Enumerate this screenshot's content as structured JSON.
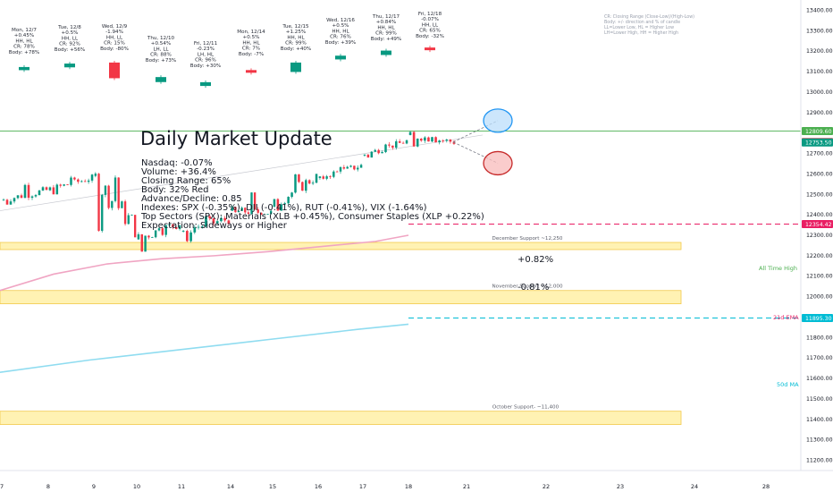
{
  "header": {
    "title": "Daily Market Update",
    "lines": [
      "Nasdaq: -0.07%",
      "Volume: +36.4%",
      "Closing Range: 65%",
      "Body: 32% Red",
      "Advance/Decline: 0.85",
      "Indexes: SPX (-0.35%), DJI (-0.41%), RUT (-0.41%), VIX (-1.64%)",
      "Top Sectors (SPX): Materials (XLB +0.45%), Consumer Staples (XLP +0.22%)",
      "Expectation: Sideways or Higher"
    ]
  },
  "legend": {
    "lines": [
      "CR: Closing Range (Close-Low)/(High-Low)",
      "Body: +/- direction and % of candle",
      "LL=Lower Low, HL = Higher Low",
      "LH=Lower High, HH = Higher High"
    ]
  },
  "daily_summaries": [
    {
      "lines": [
        "Mon, 12/7",
        "+0.45%",
        "HH, HL",
        "CR: 78%",
        "Body: +78%"
      ],
      "color": "#089981"
    },
    {
      "lines": [
        "Tue, 12/8",
        "+0.5%",
        "HH, LL",
        "CR: 92%",
        "Body: +56%"
      ],
      "color": "#089981"
    },
    {
      "lines": [
        "Wed, 12/9",
        "-1.94%",
        "HH, LL",
        "CR: 15%",
        "Body: -80%"
      ],
      "color": "#f23645"
    },
    {
      "lines": [
        "Thu, 12/10",
        "+0.54%",
        "LH, LL",
        "CR: 88%",
        "Body: +73%"
      ],
      "color": "#089981"
    },
    {
      "lines": [
        "Fri, 12/11",
        "-0.23%",
        "LH, HL",
        "CR: 96%",
        "Body: +30%"
      ],
      "color": "#089981"
    },
    {
      "lines": [
        "Mon, 12/14",
        "+0.5%",
        "HH, HL",
        "CR: 7%",
        "Body: -7%"
      ],
      "color": "#f23645"
    },
    {
      "lines": [
        "Tue, 12/15",
        "+1.25%",
        "HH, HL",
        "CR: 99%",
        "Body: +40%"
      ],
      "color": "#089981"
    },
    {
      "lines": [
        "Wed, 12/16",
        "+0.5%",
        "HH, HL",
        "CR: 76%",
        "Body: +39%"
      ],
      "color": "#089981"
    },
    {
      "lines": [
        "Thu, 12/17",
        "+0.84%",
        "HH, HL",
        "CR: 99%",
        "Body: +49%"
      ],
      "color": "#089981"
    },
    {
      "lines": [
        "Fri, 12/18",
        "-0.07%",
        "HH, LL",
        "CR: 65%",
        "Body: -32%"
      ],
      "color": "#f23645"
    }
  ],
  "annotations": {
    "up_label": "+0.82%",
    "down_label": "-0.81%",
    "ath_label": "All Time High",
    "ema_label": "21d EMA",
    "ma_label": "50d MA"
  },
  "support_zones": [
    {
      "label": "December Support ~12,250",
      "from": 12230,
      "to": 12265
    },
    {
      "label": "November Support ~12,000",
      "from": 11965,
      "to": 12030
    },
    {
      "label": "October Support- ~11,400",
      "from": 11375,
      "to": 11440
    }
  ],
  "price_tags": [
    {
      "value": "12809.60",
      "color": "#4caf50"
    },
    {
      "value": "12755.64",
      "color": "#f23645"
    },
    {
      "value": "12753.50",
      "color": "#089981"
    },
    {
      "value": "12354.42",
      "color": "#e91e63"
    },
    {
      "value": "11895.30",
      "color": "#00bcd4"
    }
  ],
  "colors": {
    "up": "#089981",
    "down": "#f23645",
    "ath_line": "#4caf50",
    "ema": "#e91e63",
    "ma": "#00bcd4",
    "ema_trend": "#f0a5c3",
    "ma_trend": "#8fdcf0",
    "zone_fill": "#fff2b3",
    "zone_border": "#f2c94c"
  },
  "chart_data": {
    "type": "candlestick",
    "title": "",
    "y_axis": {
      "range": [
        11150,
        13450
      ],
      "ticks": [
        13400,
        13300,
        13200,
        13100,
        13000,
        12900,
        12800,
        12700,
        12600,
        12500,
        12400,
        12300,
        12200,
        12100,
        12000,
        11900,
        11800,
        11700,
        11600,
        11500,
        11400,
        11300,
        11200
      ]
    },
    "x_axis": {
      "tick_labels": [
        "7",
        "8",
        "9",
        "10",
        "11",
        "14",
        "15",
        "16",
        "17",
        "18",
        "21",
        "22",
        "23",
        "24",
        "28"
      ]
    },
    "daily_candles": [
      {
        "date": "12/7",
        "open": 12470,
        "high": 12560,
        "low": 12450,
        "close": 12520
      },
      {
        "date": "12/8",
        "open": 12520,
        "high": 12600,
        "low": 12500,
        "close": 12580
      },
      {
        "date": "12/9",
        "open": 12590,
        "high": 12640,
        "low": 12290,
        "close": 12340
      },
      {
        "date": "12/10",
        "open": 12280,
        "high": 12380,
        "low": 12220,
        "close": 12360
      },
      {
        "date": "12/11",
        "open": 12320,
        "high": 12400,
        "low": 12250,
        "close": 12380
      },
      {
        "date": "12/14",
        "open": 12420,
        "high": 12510,
        "low": 12400,
        "close": 12410
      },
      {
        "date": "12/15",
        "open": 12440,
        "high": 12600,
        "low": 12420,
        "close": 12590
      },
      {
        "date": "12/16",
        "open": 12580,
        "high": 12660,
        "low": 12560,
        "close": 12640
      },
      {
        "date": "12/17",
        "open": 12690,
        "high": 12770,
        "low": 12680,
        "close": 12760
      },
      {
        "date": "12/18",
        "open": 12790,
        "high": 12810,
        "low": 12700,
        "close": 12756
      }
    ],
    "key_levels": {
      "all_time_high": 12809.6,
      "last_close": 12755.64,
      "ema_21d": 12354.42,
      "ma_50d": 11895.3
    },
    "projections": {
      "up_pct": 0.82,
      "down_pct": -0.81
    }
  }
}
